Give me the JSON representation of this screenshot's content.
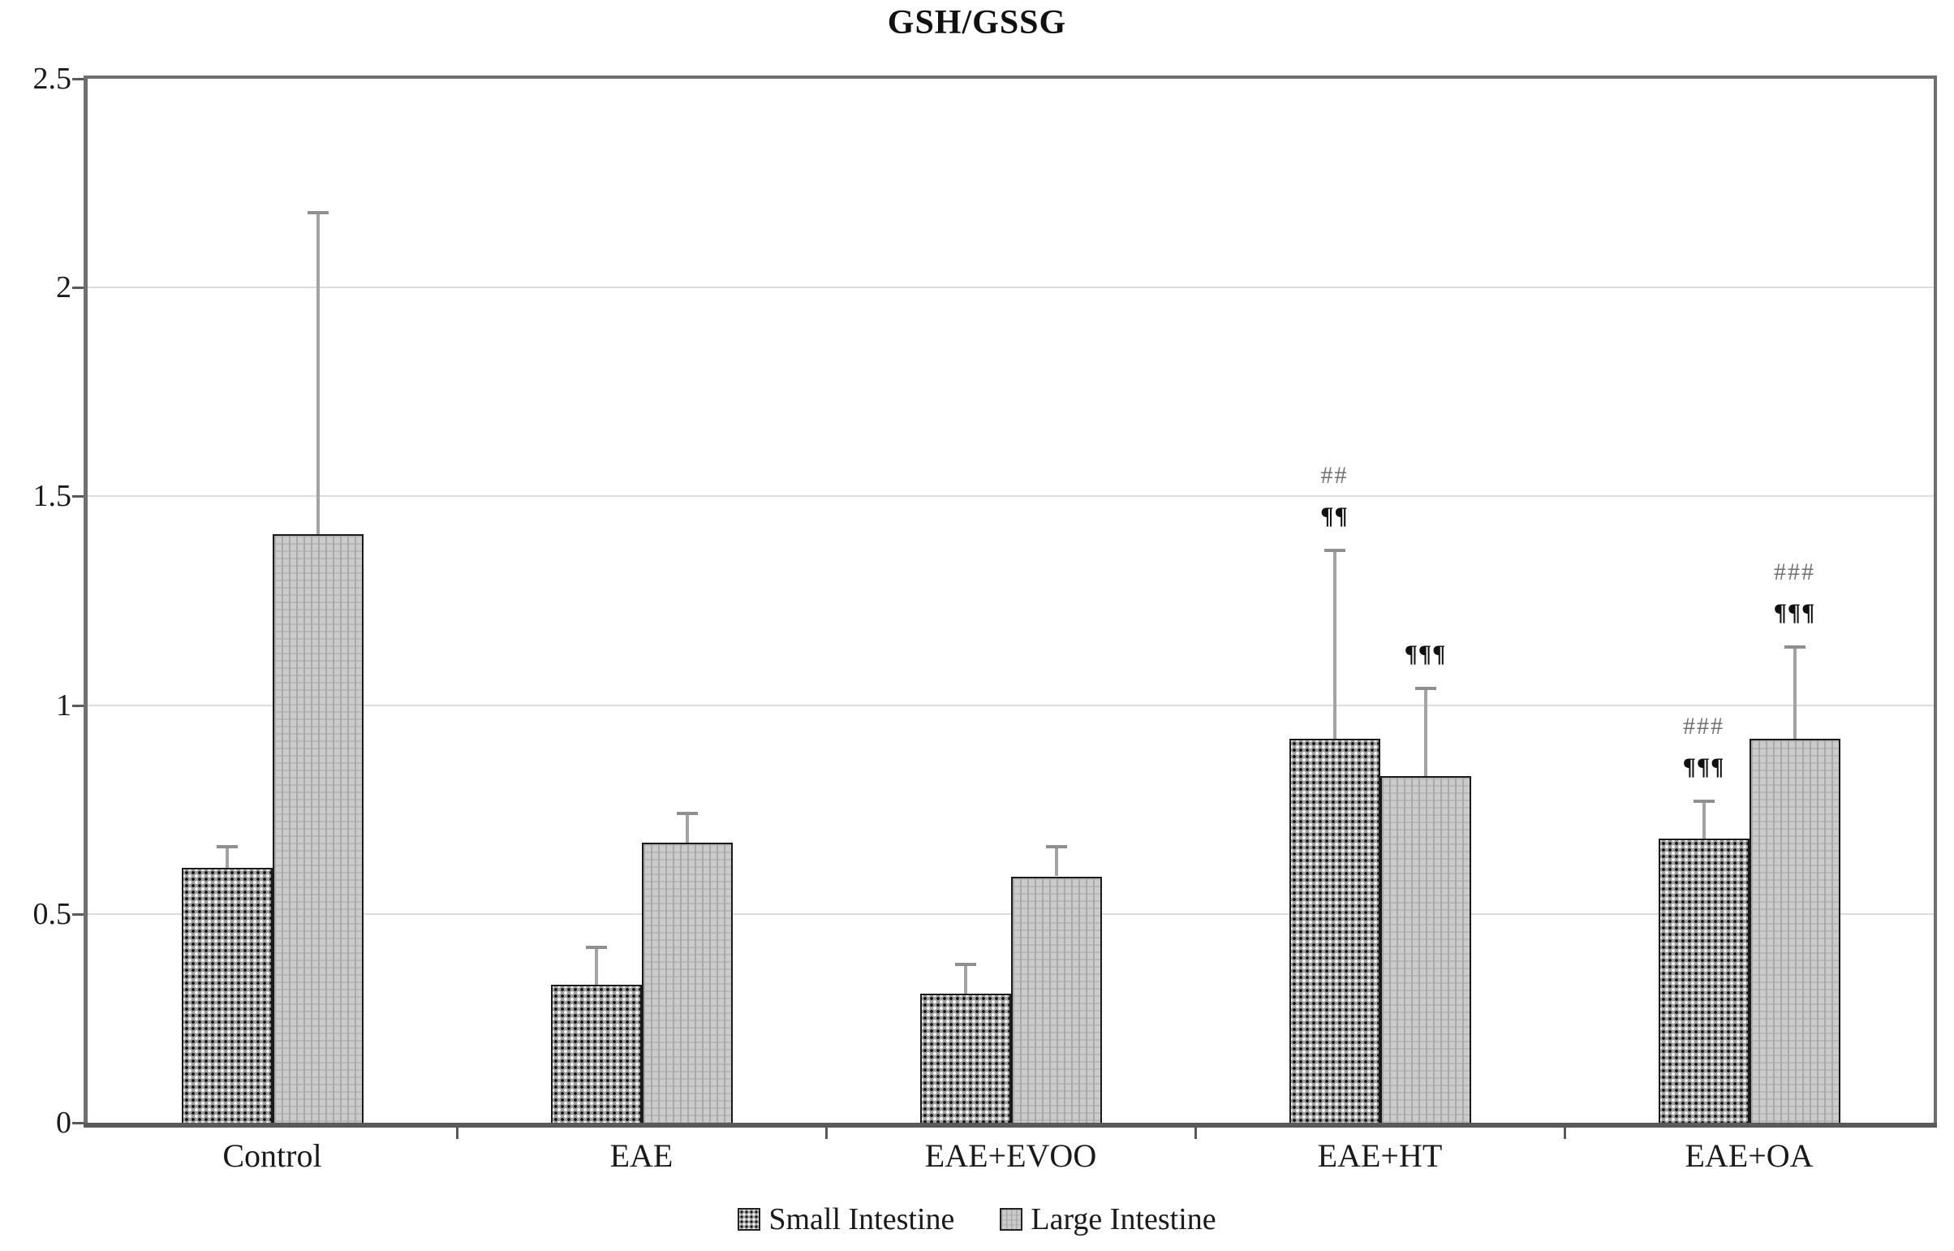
{
  "figure": {
    "title": "GSH/GSSG"
  },
  "chart_data": {
    "type": "bar",
    "title": "GSH/GSSG",
    "categories": [
      "Control",
      "EAE",
      "EAE+EVOO",
      "EAE+HT",
      "EAE+OA"
    ],
    "series": [
      {
        "name": "Small Intestine",
        "pattern": "dotted",
        "values": [
          0.61,
          0.33,
          0.31,
          0.92,
          0.68
        ],
        "error_up": [
          0.05,
          0.09,
          0.07,
          0.45,
          0.09
        ]
      },
      {
        "name": "Large Intestine",
        "pattern": "vertical-stripes",
        "values": [
          1.41,
          0.67,
          0.59,
          0.83,
          0.92
        ],
        "error_up": [
          0.77,
          0.07,
          0.07,
          0.21,
          0.22
        ]
      }
    ],
    "annotations": [
      {
        "category": "EAE+HT",
        "series": "Small Intestine",
        "lines": [
          "##",
          "¶¶"
        ]
      },
      {
        "category": "EAE+HT",
        "series": "Large Intestine",
        "lines": [
          "¶¶¶"
        ]
      },
      {
        "category": "EAE+OA",
        "series": "Small Intestine",
        "lines": [
          "###",
          "¶¶¶"
        ]
      },
      {
        "category": "EAE+OA",
        "series": "Large Intestine",
        "lines": [
          "###",
          "¶¶¶"
        ]
      }
    ],
    "y_axis": {
      "min": 0,
      "max": 2.5,
      "tick_values": [
        0,
        0.5,
        1,
        1.5,
        2,
        2.5
      ],
      "tick_labels": [
        "0",
        "0.5",
        "1",
        "1.5",
        "2",
        "2.5"
      ]
    },
    "x_axis": {
      "tick_marks_between_categories": true
    },
    "legend": {
      "position": "bottom",
      "entries": [
        "Small Intestine",
        "Large Intestine"
      ]
    },
    "grid": true,
    "layout": {
      "ylim": [
        0,
        2.5
      ],
      "legend_position": "bottom"
    },
    "colors": {
      "bar_border": "#1a1a1a",
      "error_bar": "#a3a3a3",
      "error_cap": "#8f8f8f",
      "axis_frame": "#6e6e6e",
      "axis_bottom": "#595959",
      "gridline": "#dcdcdc",
      "hash_annotation": "#707070",
      "pilcrow_annotation": "#111111",
      "stripe_fill": "#cbcbcb",
      "dot_fill": "#9f9f9f"
    }
  }
}
